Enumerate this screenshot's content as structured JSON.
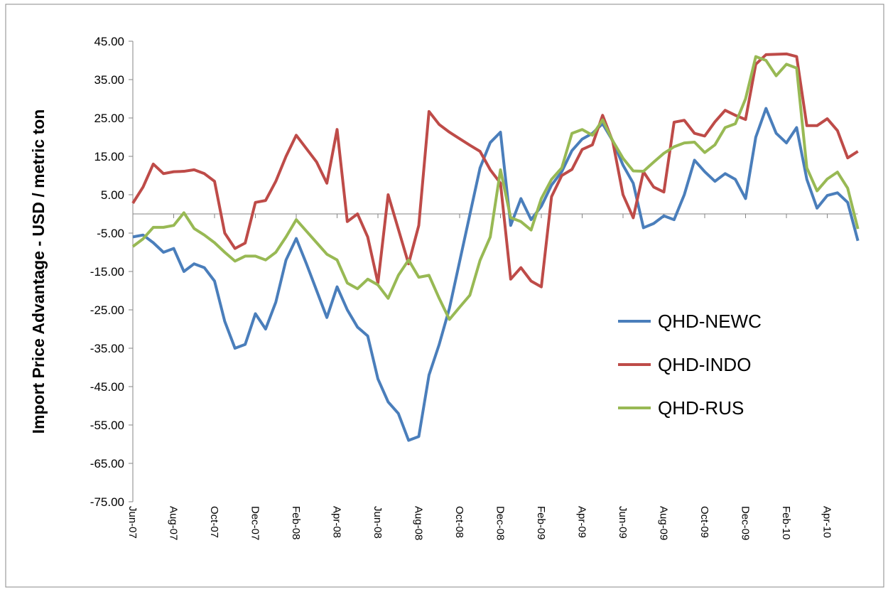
{
  "chart_data": {
    "type": "line",
    "y_label": "Import Price Advantage - USD / metric ton",
    "categories": [
      "Jun-07",
      null,
      null,
      null,
      "Aug-07",
      null,
      null,
      null,
      "Oct-07",
      null,
      null,
      null,
      "Dec-07",
      null,
      null,
      null,
      "Feb-08",
      null,
      null,
      null,
      "Apr-08",
      null,
      null,
      null,
      "Jun-08",
      null,
      null,
      null,
      "Aug-08",
      null,
      null,
      null,
      "Oct-08",
      null,
      null,
      null,
      "Dec-08",
      null,
      null,
      null,
      "Feb-09",
      null,
      null,
      null,
      "Apr-09",
      null,
      null,
      null,
      "Jun-09",
      null,
      null,
      null,
      "Aug-09",
      null,
      null,
      null,
      "Oct-09",
      null,
      null,
      null,
      "Dec-09",
      null,
      null,
      null,
      "Feb-10",
      null,
      null,
      null,
      "Apr-10",
      null,
      null,
      null
    ],
    "series": [
      {
        "name": "QHD-NEWC",
        "color": "#4a7ebb",
        "values": [
          -6,
          -5.5,
          -7.5,
          -10,
          -9,
          -15,
          -13,
          -14,
          -17.5,
          -28,
          -35,
          -34,
          -26,
          -30,
          -23,
          -12,
          -6.4,
          -13,
          -20,
          -27,
          -19,
          -25,
          -29.5,
          -31.8,
          -43,
          -49,
          -52,
          -59,
          -58,
          -42,
          -34,
          -24.6,
          -12.4,
          -0.2,
          12,
          18.6,
          21.3,
          -3,
          4,
          -1.5,
          2,
          7.5,
          11,
          16.5,
          19.5,
          21,
          23.5,
          19,
          12.7,
          8,
          -3.6,
          -2.5,
          -0.5,
          -1.5,
          5,
          14,
          11,
          8.5,
          10.5,
          9,
          4,
          20,
          27.5,
          21,
          18.5,
          22.5,
          9,
          1.5,
          4.8,
          5.5,
          3,
          -7
        ]
      },
      {
        "name": "QHD-INDO",
        "color": "#be4b48",
        "values": [
          2.8,
          7,
          13,
          10.5,
          11,
          11.1,
          11.5,
          10.5,
          8.5,
          -5,
          -9,
          -7.6,
          3,
          3.5,
          8.5,
          15,
          20.5,
          17,
          13.5,
          8,
          22,
          -2,
          0,
          -6,
          -18,
          5,
          -4,
          -13,
          -3,
          26.7,
          23.3,
          21.3,
          19.6,
          17.9,
          16.3,
          11.5,
          8,
          -17,
          -14,
          -17.5,
          -19,
          4.5,
          10,
          11.6,
          16.8,
          18,
          25.7,
          18.8,
          5,
          -1,
          11,
          7,
          5.7,
          23.9,
          24.4,
          21,
          20.3,
          24,
          27,
          25.7,
          24.6,
          39,
          41.5,
          41.6,
          41.7,
          41,
          23,
          23,
          24.8,
          21.7,
          14.6,
          16.3
        ]
      },
      {
        "name": "QHD-RUS",
        "color": "#98b954",
        "values": [
          -8.5,
          -6.5,
          -3.5,
          -3.5,
          -3,
          0.3,
          -3.8,
          -5.5,
          -7.5,
          -10,
          -12.3,
          -11,
          -11,
          -12,
          -10,
          -6,
          -1.5,
          -4.5,
          -7.5,
          -10.5,
          -12,
          -18,
          -19.5,
          -17,
          -18.5,
          -22,
          -16,
          -12,
          -16.5,
          -16,
          -22,
          -27.5,
          -24.3,
          -21.2,
          -12.1,
          -6,
          11.5,
          -1,
          -2,
          -4.2,
          4,
          9,
          12,
          21,
          22,
          20.5,
          24.5,
          19,
          14.5,
          11.2,
          11.1,
          13.5,
          15.8,
          17.5,
          18.5,
          18.7,
          16,
          18,
          22.5,
          23.5,
          30,
          41,
          40,
          36,
          39,
          38,
          12,
          6,
          9.1,
          10.9,
          6.7,
          -3.9
        ]
      }
    ],
    "ylim": [
      -75,
      45
    ],
    "yticks": [
      {
        "value": 45,
        "label": "45.00"
      },
      {
        "value": 35,
        "label": "35.00"
      },
      {
        "value": 25,
        "label": "25.00"
      },
      {
        "value": 15,
        "label": "15.00"
      },
      {
        "value": 5,
        "label": "5.00"
      },
      {
        "value": -5,
        "label": "-5.00"
      },
      {
        "value": -15,
        "label": "-15.00"
      },
      {
        "value": -25,
        "label": "-25.00"
      },
      {
        "value": -35,
        "label": "-35.00"
      },
      {
        "value": -45,
        "label": "-45.00"
      },
      {
        "value": -55,
        "label": "-55.00"
      },
      {
        "value": -65,
        "label": "-65.00"
      },
      {
        "value": -75,
        "label": "-75.00"
      }
    ],
    "grid": false,
    "legend_position": "right"
  }
}
